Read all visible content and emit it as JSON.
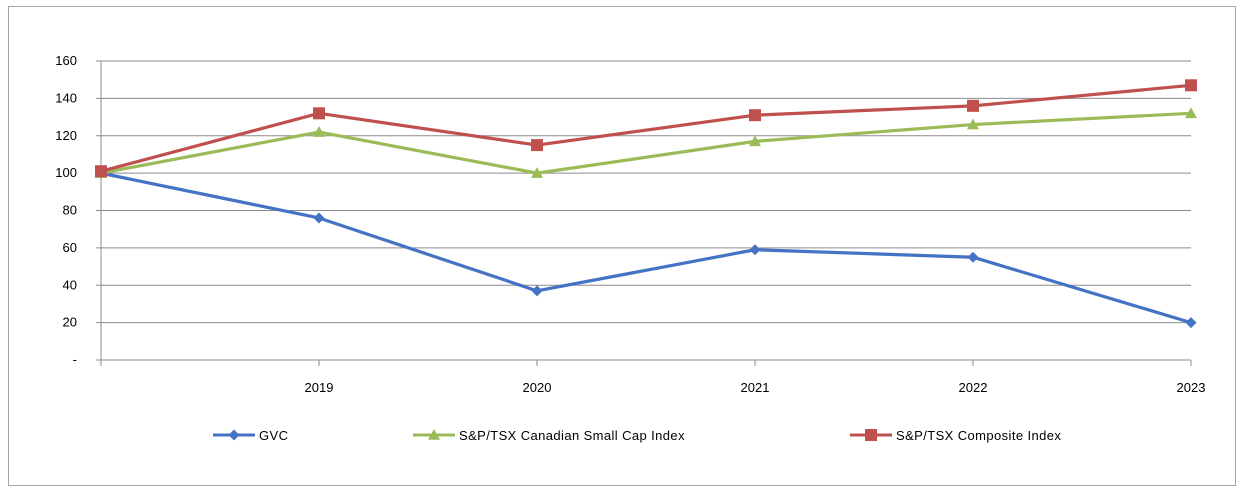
{
  "chart_data": {
    "type": "line",
    "title": "",
    "xlabel": "",
    "ylabel": "",
    "categories": [
      "",
      "2019",
      "2020",
      "2021",
      "2022",
      "2023"
    ],
    "ylim": [
      0,
      160
    ],
    "yticks": [
      0,
      20,
      40,
      60,
      80,
      100,
      120,
      140,
      160
    ],
    "ytick_labels": [
      "-",
      "20",
      "40",
      "60",
      "80",
      "100",
      "120",
      "140",
      "160"
    ],
    "grid": true,
    "legend_position": "bottom",
    "series": [
      {
        "name": "GVC",
        "values": [
          100,
          76,
          37,
          59,
          55,
          20
        ],
        "color": "#4472c4",
        "marker": "diamond"
      },
      {
        "name": "S&P/TSX Canadian Small Cap Index",
        "values": [
          100,
          122,
          100,
          117,
          126,
          132
        ],
        "color": "#9bbb59",
        "marker": "triangle"
      },
      {
        "name": "S&P/TSX Composite Index",
        "values": [
          101,
          132,
          115,
          131,
          136,
          147
        ],
        "color": "#c0504d",
        "marker": "square"
      }
    ]
  }
}
